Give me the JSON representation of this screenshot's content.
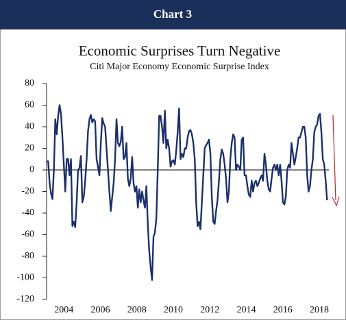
{
  "header": "Chart 3",
  "chart_data": {
    "type": "line",
    "title": "Economic Surprises Turn Negative",
    "subtitle": "Citi Major Economy Economic Surprise Index",
    "xlim": [
      2003.05,
      2018.9
    ],
    "xticks": [
      2004,
      2006,
      2008,
      2010,
      2012,
      2014,
      2016,
      2018
    ],
    "ylim": [
      -120,
      80
    ],
    "yticks": [
      -120,
      -100,
      -80,
      -60,
      -40,
      -20,
      0,
      20,
      40,
      60,
      80
    ],
    "grid": false,
    "x": [
      2003.06,
      2003.138,
      2003.216,
      2003.294,
      2003.372,
      2003.45,
      2003.528,
      2003.606,
      2003.684,
      2003.762,
      2003.84,
      2003.918,
      2003.996,
      2004.074,
      2004.152,
      2004.23,
      2004.308,
      2004.386,
      2004.464,
      2004.542,
      2004.62,
      2004.698,
      2004.776,
      2004.854,
      2004.932,
      2005.01,
      2005.088,
      2005.166,
      2005.244,
      2005.322,
      2005.4,
      2005.478,
      2005.556,
      2005.634,
      2005.712,
      2005.79,
      2005.868,
      2005.946,
      2006.024,
      2006.102,
      2006.18,
      2006.258,
      2006.336,
      2006.414,
      2006.492,
      2006.57,
      2006.648,
      2006.726,
      2006.804,
      2006.882,
      2006.96,
      2007.038,
      2007.116,
      2007.194,
      2007.272,
      2007.35,
      2007.428,
      2007.506,
      2007.584,
      2007.662,
      2007.74,
      2007.818,
      2007.896,
      2007.974,
      2008.052,
      2008.13,
      2008.208,
      2008.286,
      2008.364,
      2008.442,
      2008.52,
      2008.598,
      2008.676,
      2008.754,
      2008.832,
      2008.91,
      2008.988,
      2009.066,
      2009.144,
      2009.222,
      2009.3,
      2009.378,
      2009.456,
      2009.534,
      2009.612,
      2009.69,
      2009.768,
      2009.846,
      2009.924,
      2010.002,
      2010.08,
      2010.158,
      2010.236,
      2010.314,
      2010.392,
      2010.47,
      2010.548,
      2010.626,
      2010.704,
      2010.782,
      2010.86,
      2010.938,
      2011.016,
      2011.094,
      2011.172,
      2011.25,
      2011.328,
      2011.406,
      2011.484,
      2011.562,
      2011.64,
      2011.718,
      2011.796,
      2011.874,
      2011.952,
      2012.03,
      2012.108,
      2012.186,
      2012.264,
      2012.342,
      2012.42,
      2012.498,
      2012.576,
      2012.654,
      2012.732,
      2012.81,
      2012.888,
      2012.966,
      2013.044,
      2013.122,
      2013.2,
      2013.278,
      2013.356,
      2013.434,
      2013.512,
      2013.59,
      2013.668,
      2013.746,
      2013.824,
      2013.902,
      2013.98,
      2014.058,
      2014.136,
      2014.214,
      2014.292,
      2014.37,
      2014.448,
      2014.526,
      2014.604,
      2014.682,
      2014.76,
      2014.838,
      2014.916,
      2014.994,
      2015.072,
      2015.15,
      2015.228,
      2015.306,
      2015.384,
      2015.462,
      2015.54,
      2015.618,
      2015.696,
      2015.774,
      2015.852,
      2015.93,
      2016.008,
      2016.086,
      2016.164,
      2016.242,
      2016.32,
      2016.398,
      2016.476,
      2016.554,
      2016.632,
      2016.71,
      2016.788,
      2016.866,
      2016.944,
      2017.022,
      2017.1,
      2017.178,
      2017.256,
      2017.334,
      2017.412,
      2017.49,
      2017.568,
      2017.646,
      2017.724,
      2017.802,
      2017.88,
      2017.958,
      2018.036,
      2018.114,
      2018.192,
      2018.27,
      2018.348,
      2018.426
    ],
    "series": [
      {
        "color": "#1b2f6b",
        "values": [
          8,
          8,
          -12,
          -22,
          -27,
          0,
          47,
          33,
          50,
          60,
          52,
          30,
          5,
          -20,
          10,
          10,
          -5,
          10,
          -52,
          -48,
          -53,
          -30,
          0,
          2,
          13,
          -30,
          -25,
          -10,
          10,
          36,
          47,
          51,
          44,
          47,
          45,
          10,
          3,
          -5,
          25,
          48,
          43,
          40,
          20,
          0,
          -20,
          -38,
          -25,
          -12,
          10,
          47,
          25,
          22,
          26,
          40,
          10,
          12,
          25,
          -8,
          -15,
          -8,
          12,
          -12,
          -20,
          -15,
          -35,
          -18,
          -30,
          -20,
          -28,
          -35,
          -15,
          -50,
          -75,
          -90,
          -102,
          -62,
          -58,
          -45,
          0,
          50,
          50,
          40,
          25,
          55,
          20,
          28,
          20,
          3,
          8,
          9,
          5,
          18,
          35,
          57,
          10,
          15,
          12,
          20,
          20,
          30,
          36,
          37,
          33,
          25,
          10,
          -30,
          -52,
          -48,
          -55,
          -30,
          -5,
          20,
          23,
          25,
          28,
          15,
          -25,
          -48,
          -50,
          -38,
          -28,
          -10,
          10,
          19,
          15,
          5,
          -8,
          -30,
          -20,
          10,
          25,
          33,
          30,
          0,
          5,
          3,
          0,
          28,
          30,
          -5,
          -5,
          -15,
          -23,
          -25,
          -10,
          -20,
          -12,
          -10,
          -15,
          -12,
          -8,
          -5,
          -10,
          15,
          5,
          -10,
          -18,
          -20,
          -8,
          2,
          5,
          0,
          5,
          -5,
          5,
          -10,
          -30,
          -32,
          -25,
          0,
          5,
          2,
          25,
          15,
          5,
          12,
          20,
          30,
          30,
          35,
          40,
          40,
          30,
          -5,
          -20,
          -15,
          0,
          10,
          35,
          40,
          42,
          50,
          52,
          35,
          10,
          5,
          -10,
          -28
        ]
      }
    ]
  }
}
